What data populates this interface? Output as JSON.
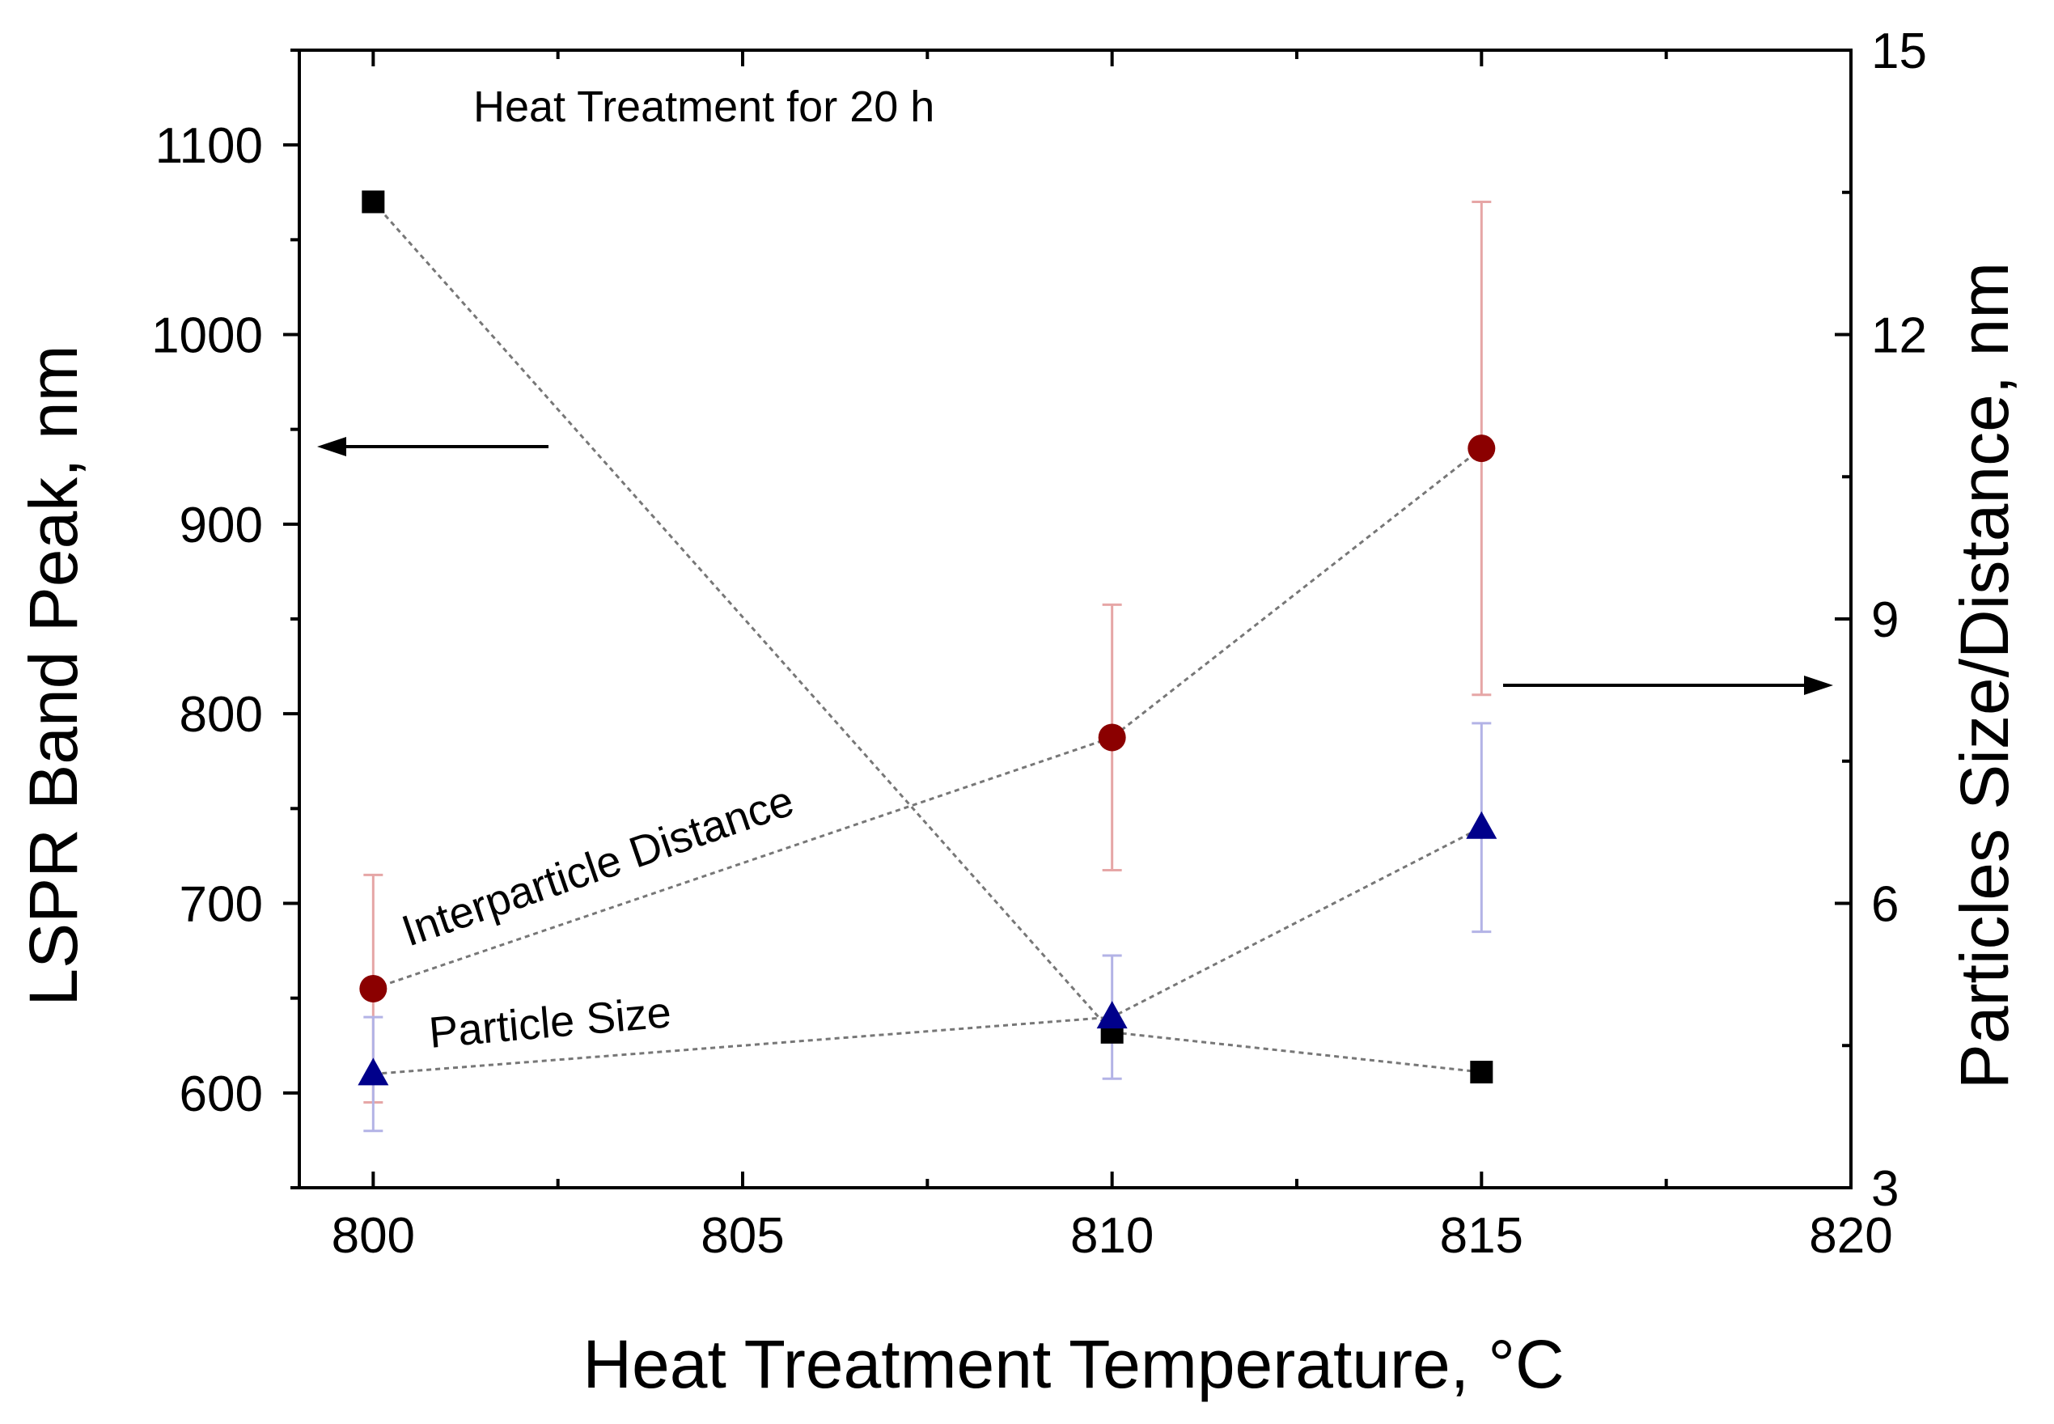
{
  "chart_data": {
    "type": "scatter",
    "title": "",
    "xlabel": "Heat Treatment Temperature, °C",
    "ylabel_left": "LSPR Band Peak, nm",
    "ylabel_right": "Particles Size/Distance, nm",
    "xlim": [
      799,
      820
    ],
    "ylim_left": [
      550,
      1150
    ],
    "ylim_right": [
      3,
      15
    ],
    "x_ticks": [
      800,
      805,
      810,
      815,
      820
    ],
    "y_left_ticks": [
      600,
      700,
      800,
      900,
      1000,
      1100
    ],
    "y_right_ticks": [
      3,
      6,
      9,
      12,
      15
    ],
    "x_tick_labels": [
      "800",
      "805",
      "810",
      "815",
      "820"
    ],
    "y_left_tick_labels": [
      "600",
      "700",
      "800",
      "900",
      "1000",
      "1100"
    ],
    "y_right_tick_labels": [
      "3",
      "6",
      "9",
      "12",
      "15"
    ],
    "series": [
      {
        "name": "LSPR Band Peak",
        "axis": "left",
        "marker": "square",
        "color": "#000000",
        "x": [
          800,
          810,
          815
        ],
        "y": [
          1070,
          632,
          611
        ]
      },
      {
        "name": "Interparticle Distance",
        "axis": "right",
        "marker": "circle",
        "color": "#8b0000",
        "error_color": "#e6a6a6",
        "x": [
          800,
          810,
          815
        ],
        "y": [
          5.1,
          7.75,
          10.8
        ],
        "err": [
          1.2,
          1.4,
          2.6
        ]
      },
      {
        "name": "Particle Size",
        "axis": "right",
        "marker": "triangle",
        "color": "#00008b",
        "error_color": "#b3b3e6",
        "x": [
          800,
          810,
          815
        ],
        "y": [
          4.2,
          4.8,
          6.8
        ],
        "err": [
          0.6,
          0.65,
          1.1
        ]
      }
    ],
    "annotations": {
      "heat_treatment": "Heat Treatment for 20 h",
      "interparticle": "Interparticle Distance",
      "particle_size": "Particle Size"
    },
    "grid": false
  }
}
